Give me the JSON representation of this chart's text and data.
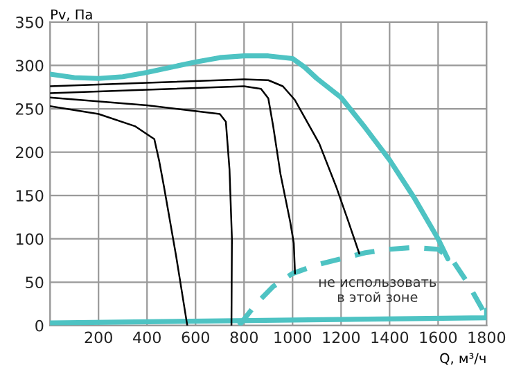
{
  "chart_data": {
    "type": "line",
    "xlabel": "Q, м³/ч",
    "ylabel": "Pv, Па",
    "xlim": [
      0,
      1800
    ],
    "ylim": [
      0,
      350
    ],
    "xticks": [
      {
        "value": 0,
        "label": null
      },
      200,
      400,
      600,
      800,
      1000,
      1200,
      1400,
      1600,
      1800
    ],
    "yticks": [
      0,
      50,
      100,
      150,
      200,
      250,
      300,
      350
    ],
    "grid": true,
    "marker": "none",
    "series": [
      {
        "color": "#4ec3c3",
        "line_style": "solid",
        "x": [
          0,
          100,
          200,
          300,
          400,
          500,
          600,
          700,
          800,
          900,
          1000,
          1050,
          1100,
          1200,
          1300,
          1400,
          1500,
          1600,
          1640
        ],
        "values": [
          290,
          286,
          285,
          287,
          292,
          298,
          304,
          309,
          311,
          311,
          308,
          298,
          285,
          263,
          228,
          191,
          148,
          100,
          77
        ]
      },
      {
        "color": "#4ec3c3",
        "line_style": "dashed",
        "x": [
          780,
          850,
          920,
          1000,
          1100,
          1200,
          1300,
          1400,
          1500,
          1600,
          1660,
          1720,
          1780,
          1800
        ],
        "values": [
          0,
          25,
          45,
          60,
          70,
          77,
          84,
          88,
          90,
          88,
          75,
          50,
          20,
          8
        ]
      },
      {
        "color": "#4ec3c3",
        "line_style": "solid",
        "x": [
          0,
          1800,
          1800
        ],
        "values": [
          3,
          9,
          18
        ]
      },
      {
        "color": "#000000",
        "line_style": "solid",
        "x": [
          0,
          200,
          350,
          430,
          450,
          470,
          520,
          566
        ],
        "values": [
          253,
          244,
          230,
          215,
          190,
          160,
          80,
          0
        ]
      },
      {
        "color": "#000000",
        "line_style": "solid",
        "x": [
          0,
          400,
          700,
          725,
          740,
          750,
          748
        ],
        "values": [
          263,
          254,
          244,
          235,
          180,
          100,
          0
        ]
      },
      {
        "color": "#000000",
        "line_style": "solid",
        "x": [
          0,
          400,
          800,
          870,
          900,
          920,
          950,
          990,
          1005,
          1010
        ],
        "values": [
          268,
          272,
          276,
          273,
          262,
          230,
          175,
          120,
          95,
          60
        ]
      },
      {
        "color": "#000000",
        "line_style": "solid",
        "x": [
          0,
          400,
          800,
          900,
          960,
          1010,
          1110,
          1180,
          1230,
          1275
        ],
        "values": [
          276,
          280,
          284,
          283,
          276,
          260,
          210,
          160,
          120,
          83
        ]
      }
    ],
    "annotations": [
      "не использовать\nв этой зоне"
    ]
  }
}
